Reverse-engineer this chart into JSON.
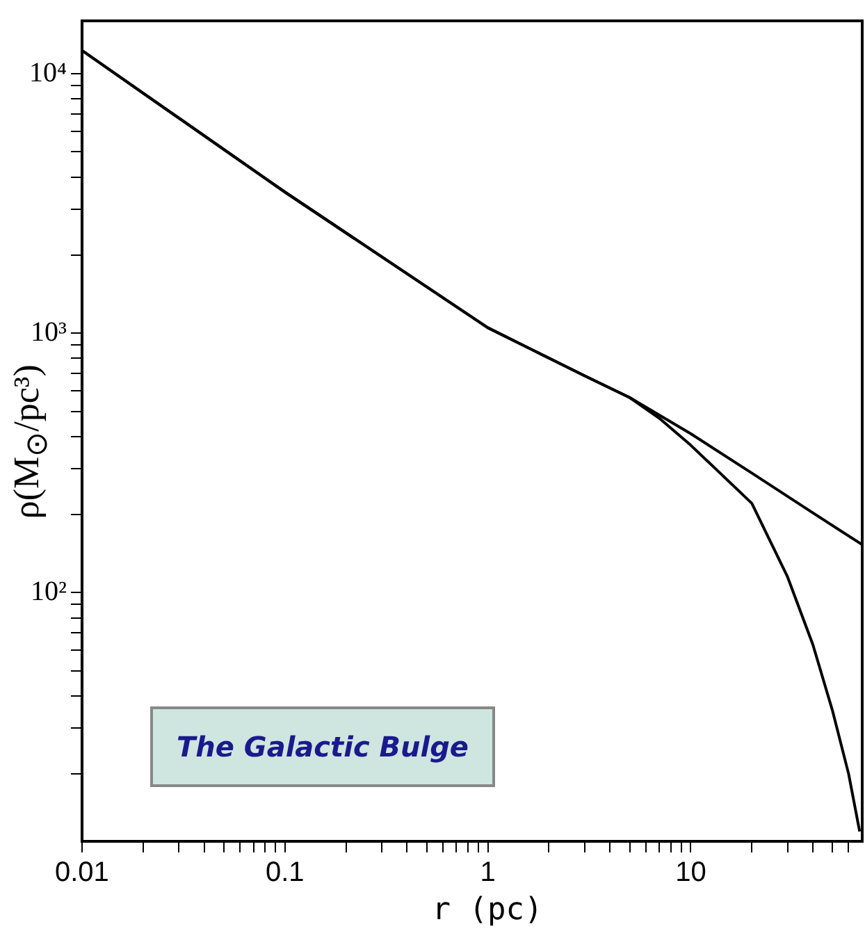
{
  "chart_data": {
    "type": "line",
    "xlabel": "r (pc)",
    "ylabel": "ρ(M$_{⊙}$/pc³)",
    "log": "xy",
    "grid": false,
    "legend": false,
    "marker": "none",
    "line_style": "solid",
    "xlim": [
      0.01,
      70
    ],
    "ylim": [
      11,
      16000
    ],
    "xticks": [
      0.01,
      {
        "value": 0.02,
        "label": null
      },
      {
        "value": 0.03,
        "label": null
      },
      {
        "value": 0.04,
        "label": null
      },
      {
        "value": 0.05,
        "label": null
      },
      {
        "value": 0.06,
        "label": null
      },
      {
        "value": 0.07,
        "label": null
      },
      {
        "value": 0.08,
        "label": null
      },
      {
        "value": 0.09,
        "label": null
      },
      0.1,
      {
        "value": 0.2,
        "label": null
      },
      {
        "value": 0.3,
        "label": null
      },
      {
        "value": 0.4,
        "label": null
      },
      {
        "value": 0.5,
        "label": null
      },
      {
        "value": 0.6,
        "label": null
      },
      {
        "value": 0.7,
        "label": null
      },
      {
        "value": 0.8,
        "label": null
      },
      {
        "value": 0.9,
        "label": null
      },
      1,
      {
        "value": 2,
        "label": null
      },
      {
        "value": 3,
        "label": null
      },
      {
        "value": 4,
        "label": null
      },
      {
        "value": 5,
        "label": null
      },
      {
        "value": 6,
        "label": null
      },
      {
        "value": 7,
        "label": null
      },
      {
        "value": 8,
        "label": null
      },
      {
        "value": 9,
        "label": null
      },
      10,
      {
        "value": 20,
        "label": null
      },
      {
        "value": 30,
        "label": null
      },
      {
        "value": 40,
        "label": null
      },
      {
        "value": 50,
        "label": null
      },
      {
        "value": 60,
        "label": null
      }
    ],
    "yticks": [
      {
        "value": 20,
        "label": null
      },
      {
        "value": 30,
        "label": null
      },
      {
        "value": 40,
        "label": null
      },
      {
        "value": 50,
        "label": null
      },
      {
        "value": 60,
        "label": null
      },
      {
        "value": 70,
        "label": null
      },
      {
        "value": 80,
        "label": null
      },
      {
        "value": 90,
        "label": null
      },
      {
        "value": 100,
        "label": "10²"
      },
      {
        "value": 200,
        "label": null
      },
      {
        "value": 300,
        "label": null
      },
      {
        "value": 400,
        "label": null
      },
      {
        "value": 500,
        "label": null
      },
      {
        "value": 600,
        "label": null
      },
      {
        "value": 700,
        "label": null
      },
      {
        "value": 800,
        "label": null
      },
      {
        "value": 900,
        "label": null
      },
      {
        "value": 1000,
        "label": "10³"
      },
      {
        "value": 2000,
        "label": null
      },
      {
        "value": 3000,
        "label": null
      },
      {
        "value": 4000,
        "label": null
      },
      {
        "value": 5000,
        "label": null
      },
      {
        "value": 6000,
        "label": null
      },
      {
        "value": 7000,
        "label": null
      },
      {
        "value": 8000,
        "label": null
      },
      {
        "value": 9000,
        "label": null
      },
      {
        "value": 10000,
        "label": "10⁴"
      }
    ],
    "series": [
      {
        "color": "#000000",
        "x": [
          0.01,
          0.1,
          1,
          3,
          5,
          10,
          20,
          40,
          70
        ],
        "values": [
          12300,
          3500,
          1050,
          685,
          565,
          410,
          289,
          203,
          153
        ]
      },
      {
        "color": "#000000",
        "x": [
          0.01,
          0.1,
          1,
          3,
          5,
          7,
          10,
          20,
          30,
          40,
          50,
          60,
          68
        ],
        "values": [
          12300,
          3500,
          1050,
          685,
          565,
          470,
          370,
          221,
          115,
          63,
          35,
          20,
          12
        ]
      }
    ],
    "annotations": [
      "The Galactic Bulge"
    ]
  }
}
